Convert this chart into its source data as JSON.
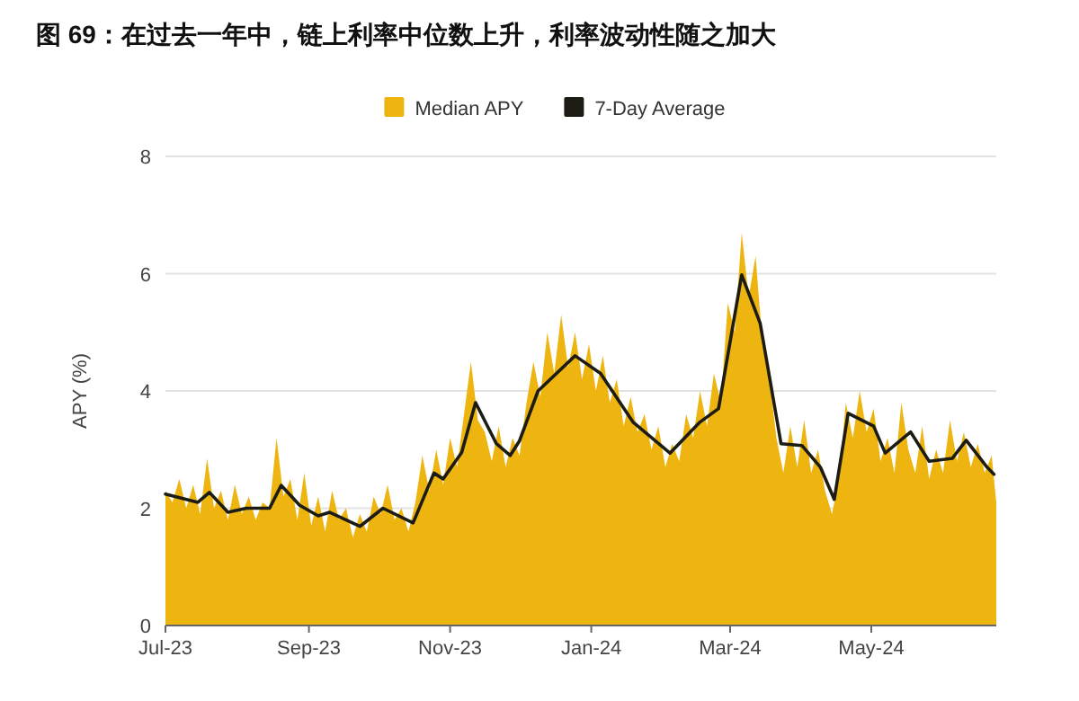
{
  "chart_data": {
    "type": "area",
    "title": "图 69：在过去一年中，链上利率中位数上升，利率波动性随之加大",
    "ylabel": "APY (%)",
    "legend": "top",
    "grid": "y",
    "xlim": [
      "2023-07-01",
      "2024-06-24"
    ],
    "ylim": [
      0,
      8
    ],
    "yticks": [
      0,
      2,
      4,
      6,
      8
    ],
    "xticks": [
      {
        "value": "2023-07-01",
        "label": "Jul-23"
      },
      {
        "value": "2023-09-01",
        "label": "Sep-23"
      },
      {
        "value": "2023-11-01",
        "label": "Nov-23"
      },
      {
        "value": "2024-01-01",
        "label": "Jan-24"
      },
      {
        "value": "2024-03-01",
        "label": "Mar-24"
      },
      {
        "value": "2024-05-01",
        "label": "May-24"
      }
    ],
    "series": [
      {
        "name": "Median APY",
        "color": "#eeb510",
        "x": [
          "2023-07-01",
          "2023-07-04",
          "2023-07-07",
          "2023-07-10",
          "2023-07-13",
          "2023-07-16",
          "2023-07-19",
          "2023-07-22",
          "2023-07-25",
          "2023-07-28",
          "2023-07-31",
          "2023-08-03",
          "2023-08-06",
          "2023-08-09",
          "2023-08-12",
          "2023-08-15",
          "2023-08-18",
          "2023-08-21",
          "2023-08-24",
          "2023-08-27",
          "2023-08-30",
          "2023-09-02",
          "2023-09-05",
          "2023-09-08",
          "2023-09-11",
          "2023-09-14",
          "2023-09-17",
          "2023-09-20",
          "2023-09-23",
          "2023-09-26",
          "2023-09-29",
          "2023-10-02",
          "2023-10-05",
          "2023-10-08",
          "2023-10-11",
          "2023-10-14",
          "2023-10-17",
          "2023-10-20",
          "2023-10-23",
          "2023-10-26",
          "2023-10-29",
          "2023-11-01",
          "2023-11-04",
          "2023-11-07",
          "2023-11-10",
          "2023-11-13",
          "2023-11-16",
          "2023-11-19",
          "2023-11-22",
          "2023-11-25",
          "2023-11-28",
          "2023-12-01",
          "2023-12-04",
          "2023-12-07",
          "2023-12-10",
          "2023-12-13",
          "2023-12-16",
          "2023-12-19",
          "2023-12-22",
          "2023-12-25",
          "2023-12-28",
          "2023-12-31",
          "2024-01-03",
          "2024-01-06",
          "2024-01-09",
          "2024-01-12",
          "2024-01-15",
          "2024-01-18",
          "2024-01-21",
          "2024-01-24",
          "2024-01-27",
          "2024-01-30",
          "2024-02-02",
          "2024-02-05",
          "2024-02-08",
          "2024-02-11",
          "2024-02-14",
          "2024-02-17",
          "2024-02-20",
          "2024-02-23",
          "2024-02-26",
          "2024-02-29",
          "2024-03-03",
          "2024-03-06",
          "2024-03-09",
          "2024-03-12",
          "2024-03-15",
          "2024-03-18",
          "2024-03-21",
          "2024-03-24",
          "2024-03-27",
          "2024-03-30",
          "2024-04-02",
          "2024-04-05",
          "2024-04-08",
          "2024-04-11",
          "2024-04-14",
          "2024-04-17",
          "2024-04-20",
          "2024-04-23",
          "2024-04-26",
          "2024-04-29",
          "2024-05-02",
          "2024-05-05",
          "2024-05-08",
          "2024-05-11",
          "2024-05-14",
          "2024-05-17",
          "2024-05-20",
          "2024-05-23",
          "2024-05-26",
          "2024-05-29",
          "2024-06-01",
          "2024-06-04",
          "2024-06-07",
          "2024-06-10",
          "2024-06-13",
          "2024-06-16",
          "2024-06-19",
          "2024-06-22",
          "2024-06-24"
        ],
        "values": [
          2.3,
          2.1,
          2.5,
          2.0,
          2.4,
          1.9,
          2.85,
          2.0,
          2.3,
          1.8,
          2.4,
          1.9,
          2.2,
          1.8,
          2.1,
          2.0,
          3.2,
          2.2,
          2.5,
          1.8,
          2.6,
          1.7,
          2.2,
          1.6,
          2.3,
          1.8,
          2.0,
          1.5,
          1.9,
          1.6,
          2.2,
          1.9,
          2.4,
          1.8,
          2.0,
          1.6,
          2.1,
          2.9,
          2.3,
          3.0,
          2.4,
          3.2,
          2.7,
          3.6,
          4.5,
          3.5,
          3.3,
          2.8,
          3.4,
          2.7,
          3.2,
          2.9,
          3.8,
          4.5,
          3.9,
          5.0,
          4.3,
          5.3,
          4.4,
          5.0,
          4.2,
          4.8,
          4.0,
          4.6,
          3.8,
          4.2,
          3.4,
          3.9,
          3.3,
          3.6,
          3.0,
          3.4,
          2.7,
          3.1,
          2.8,
          3.6,
          3.2,
          4.0,
          3.4,
          4.3,
          3.8,
          5.5,
          5.0,
          6.7,
          5.6,
          6.3,
          4.8,
          4.2,
          3.2,
          2.6,
          3.4,
          2.7,
          3.5,
          2.6,
          3.0,
          2.3,
          1.9,
          2.5,
          3.8,
          3.2,
          4.0,
          3.3,
          3.7,
          2.8,
          3.2,
          2.6,
          3.8,
          3.0,
          2.6,
          3.4,
          2.5,
          3.0,
          2.6,
          3.5,
          2.8,
          3.3,
          2.7,
          3.1,
          2.6,
          2.9,
          2.1
        ]
      },
      {
        "name": "7-Day Average",
        "type": "line",
        "color": "#1c1c14",
        "x": [
          "2023-07-01",
          "2023-07-15",
          "2023-07-20",
          "2023-07-28",
          "2023-08-05",
          "2023-08-15",
          "2023-08-20",
          "2023-08-28",
          "2023-09-05",
          "2023-09-10",
          "2023-09-23",
          "2023-10-03",
          "2023-10-16",
          "2023-10-25",
          "2023-10-29",
          "2023-11-06",
          "2023-11-12",
          "2023-11-21",
          "2023-11-27",
          "2023-12-01",
          "2023-12-09",
          "2023-12-25",
          "2024-01-05",
          "2024-01-19",
          "2024-02-04",
          "2024-02-17",
          "2024-02-25",
          "2024-03-06",
          "2024-03-14",
          "2024-03-23",
          "2024-04-01",
          "2024-04-09",
          "2024-04-15",
          "2024-04-21",
          "2024-05-02",
          "2024-05-07",
          "2024-05-18",
          "2024-05-26",
          "2024-06-05",
          "2024-06-11",
          "2024-06-20",
          "2024-06-23"
        ],
        "values": [
          2.24,
          2.1,
          2.27,
          1.93,
          2.0,
          2.0,
          2.39,
          2.05,
          1.87,
          1.93,
          1.69,
          2.0,
          1.75,
          2.6,
          2.5,
          2.95,
          3.8,
          3.1,
          2.9,
          3.15,
          4.0,
          4.6,
          4.3,
          3.47,
          2.94,
          3.47,
          3.7,
          5.98,
          5.15,
          3.1,
          3.07,
          2.7,
          2.15,
          3.62,
          3.4,
          2.94,
          3.3,
          2.8,
          2.85,
          3.16,
          2.7,
          2.58
        ]
      }
    ]
  }
}
